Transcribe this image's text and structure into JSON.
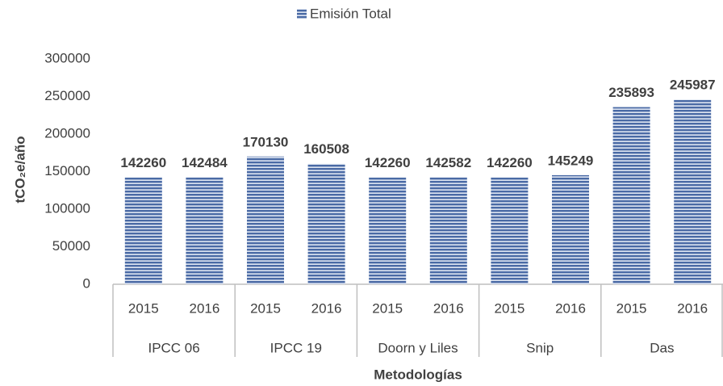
{
  "chart_data": {
    "type": "bar",
    "legend": "Emisión Total",
    "color": "#4a6aa5",
    "categories": [
      "2015",
      "2016",
      "2015",
      "2016",
      "2015",
      "2016",
      "2015",
      "2016",
      "2015",
      "2016"
    ],
    "groups": [
      "IPCC 06",
      "IPCC 19",
      "Doorn y Liles",
      "Snip",
      "Das"
    ],
    "values": [
      142260,
      142484,
      170130,
      160508,
      142260,
      142582,
      142260,
      145249,
      235893,
      245987
    ],
    "ylim": [
      0,
      300000
    ],
    "yticks": [
      0,
      50000,
      100000,
      150000,
      200000,
      250000,
      300000
    ],
    "ylabel": "tCO₂e/año",
    "xlabel": "Metodologías"
  }
}
